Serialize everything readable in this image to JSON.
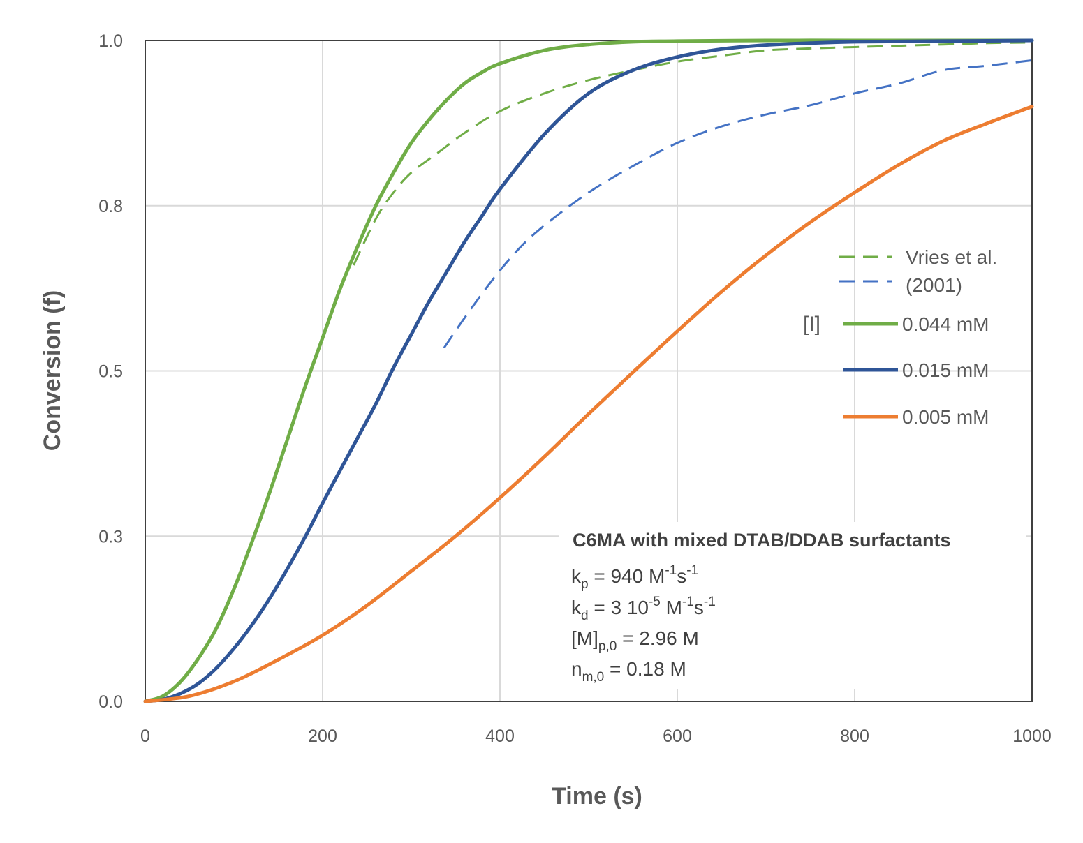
{
  "chart_data": {
    "type": "line",
    "title": "",
    "xlabel": "Time (s)",
    "ylabel": "Conversion (f)",
    "xlim": [
      0,
      1000
    ],
    "ylim": [
      0,
      1.0
    ],
    "x_ticks": [
      "0",
      "200",
      "400",
      "600",
      "800",
      "1000"
    ],
    "y_ticks": [
      "0.0",
      "0.3",
      "0.5",
      "0.8",
      "1.0"
    ],
    "grid": true,
    "legend_position": "right",
    "legend": {
      "dashed_label_line1": "Vries et al.",
      "dashed_label_line2": "(2001)",
      "group_label": "[I]"
    },
    "series": [
      {
        "name": "0.044 mM",
        "color": "#70AD47",
        "style": "solid",
        "points": [
          [
            0,
            0
          ],
          [
            20,
            0.008
          ],
          [
            40,
            0.03
          ],
          [
            60,
            0.065
          ],
          [
            80,
            0.11
          ],
          [
            100,
            0.17
          ],
          [
            120,
            0.24
          ],
          [
            140,
            0.315
          ],
          [
            160,
            0.395
          ],
          [
            180,
            0.475
          ],
          [
            200,
            0.55
          ],
          [
            220,
            0.625
          ],
          [
            240,
            0.69
          ],
          [
            260,
            0.75
          ],
          [
            280,
            0.8
          ],
          [
            300,
            0.845
          ],
          [
            320,
            0.88
          ],
          [
            340,
            0.91
          ],
          [
            360,
            0.935
          ],
          [
            380,
            0.952
          ],
          [
            400,
            0.965
          ],
          [
            450,
            0.985
          ],
          [
            500,
            0.994
          ],
          [
            550,
            0.998
          ],
          [
            600,
            0.999
          ],
          [
            700,
            1.0
          ],
          [
            800,
            1.0
          ],
          [
            900,
            1.0
          ],
          [
            1000,
            1.0
          ]
        ]
      },
      {
        "name": "0.015 mM",
        "color": "#2F5597",
        "style": "solid",
        "points": [
          [
            0,
            0
          ],
          [
            20,
            0.003
          ],
          [
            40,
            0.012
          ],
          [
            60,
            0.027
          ],
          [
            80,
            0.05
          ],
          [
            100,
            0.08
          ],
          [
            120,
            0.115
          ],
          [
            140,
            0.155
          ],
          [
            160,
            0.2
          ],
          [
            180,
            0.248
          ],
          [
            200,
            0.3
          ],
          [
            220,
            0.35
          ],
          [
            240,
            0.4
          ],
          [
            260,
            0.45
          ],
          [
            280,
            0.505
          ],
          [
            300,
            0.555
          ],
          [
            320,
            0.605
          ],
          [
            340,
            0.65
          ],
          [
            360,
            0.695
          ],
          [
            380,
            0.735
          ],
          [
            400,
            0.775
          ],
          [
            450,
            0.858
          ],
          [
            500,
            0.92
          ],
          [
            550,
            0.955
          ],
          [
            600,
            0.975
          ],
          [
            650,
            0.987
          ],
          [
            700,
            0.993
          ],
          [
            750,
            0.996
          ],
          [
            800,
            0.998
          ],
          [
            900,
            0.999
          ],
          [
            1000,
            1.0
          ]
        ]
      },
      {
        "name": "0.005 mM",
        "color": "#ED7D31",
        "style": "solid",
        "points": [
          [
            0,
            0
          ],
          [
            50,
            0.008
          ],
          [
            100,
            0.03
          ],
          [
            150,
            0.063
          ],
          [
            200,
            0.1
          ],
          [
            250,
            0.145
          ],
          [
            300,
            0.197
          ],
          [
            350,
            0.25
          ],
          [
            400,
            0.308
          ],
          [
            450,
            0.37
          ],
          [
            500,
            0.435
          ],
          [
            550,
            0.498
          ],
          [
            600,
            0.56
          ],
          [
            650,
            0.62
          ],
          [
            700,
            0.675
          ],
          [
            750,
            0.725
          ],
          [
            800,
            0.77
          ],
          [
            850,
            0.812
          ],
          [
            900,
            0.848
          ],
          [
            950,
            0.875
          ],
          [
            1000,
            0.9
          ]
        ]
      },
      {
        "color": "#70AD47",
        "style": "dashed",
        "points": [
          [
            235,
            0.66
          ],
          [
            260,
            0.73
          ],
          [
            280,
            0.77
          ],
          [
            300,
            0.8
          ],
          [
            330,
            0.83
          ],
          [
            360,
            0.86
          ],
          [
            400,
            0.893
          ],
          [
            450,
            0.92
          ],
          [
            500,
            0.94
          ],
          [
            550,
            0.955
          ],
          [
            600,
            0.968
          ],
          [
            650,
            0.977
          ],
          [
            700,
            0.985
          ],
          [
            750,
            0.988
          ],
          [
            800,
            0.99
          ],
          [
            850,
            0.992
          ],
          [
            900,
            0.994
          ],
          [
            950,
            0.996
          ],
          [
            1000,
            0.997
          ]
        ]
      },
      {
        "color": "#4472C4",
        "style": "dashed",
        "points": [
          [
            337,
            0.535
          ],
          [
            360,
            0.58
          ],
          [
            390,
            0.635
          ],
          [
            420,
            0.683
          ],
          [
            450,
            0.72
          ],
          [
            500,
            0.77
          ],
          [
            550,
            0.81
          ],
          [
            600,
            0.845
          ],
          [
            650,
            0.87
          ],
          [
            700,
            0.888
          ],
          [
            750,
            0.902
          ],
          [
            800,
            0.92
          ],
          [
            850,
            0.935
          ],
          [
            900,
            0.955
          ],
          [
            950,
            0.962
          ],
          [
            1000,
            0.97
          ]
        ]
      }
    ],
    "annotation": {
      "title": "C6MA with mixed DTAB/DDAB surfactants",
      "kp_sym": "k",
      "kp_sub": "p",
      "kp_val": " = 940 M",
      "kp_sup1": "-1",
      "kp_mid": "s",
      "kp_sup2": "-1",
      "kd_sym": "k",
      "kd_sub": "d",
      "kd_val": " = 3 10",
      "kd_sup0": "-5",
      "kd_mid0": " M",
      "kd_sup1": "-1",
      "kd_mid": "s",
      "kd_sup2": "-1",
      "m_sym": "[M]",
      "m_sub": "p,0",
      "m_val": " = 2.96 M",
      "n_sym": "n",
      "n_sub": "m,0",
      "n_val": " = 0.18 M"
    }
  }
}
